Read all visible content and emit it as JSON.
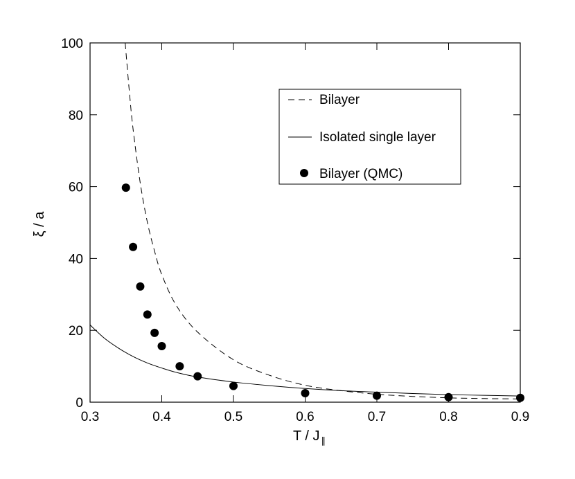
{
  "chart_data": {
    "type": "line",
    "xlabel": "T / J",
    "xlabel_subscript": "∥",
    "ylabel": "ξ / a",
    "xlim": [
      0.3,
      0.9
    ],
    "ylim": [
      0,
      100
    ],
    "x_ticks": [
      0.3,
      0.4,
      0.5,
      0.6,
      0.7,
      0.8,
      0.9
    ],
    "y_ticks": [
      0,
      20,
      40,
      60,
      80,
      100
    ],
    "x_tick_labels": [
      "0.3",
      "0.4",
      "0.5",
      "0.6",
      "0.7",
      "0.8",
      "0.9"
    ],
    "y_tick_labels": [
      "0",
      "20",
      "40",
      "60",
      "80",
      "100"
    ],
    "grid": false,
    "legend_position": "top-right",
    "series": [
      {
        "name": "Bilayer",
        "style": "dashed",
        "color": "#000000",
        "x": [
          0.349,
          0.355,
          0.36,
          0.37,
          0.38,
          0.39,
          0.4,
          0.42,
          0.45,
          0.5,
          0.55,
          0.6,
          0.65,
          0.7,
          0.75,
          0.8,
          0.85,
          0.9
        ],
        "y": [
          100,
          86,
          76,
          61,
          50,
          42,
          35.5,
          27,
          19.5,
          11.8,
          7.5,
          4.7,
          3.2,
          2.2,
          1.6,
          1.2,
          1.0,
          0.9
        ]
      },
      {
        "name": "Isolated single layer",
        "style": "solid",
        "color": "#000000",
        "x": [
          0.3,
          0.32,
          0.34,
          0.36,
          0.38,
          0.4,
          0.42,
          0.45,
          0.5,
          0.55,
          0.6,
          0.65,
          0.7,
          0.75,
          0.8,
          0.85,
          0.9
        ],
        "y": [
          21.5,
          17.8,
          15.0,
          12.7,
          10.9,
          9.5,
          8.3,
          7.0,
          5.6,
          4.6,
          3.8,
          3.2,
          2.8,
          2.4,
          2.1,
          1.9,
          1.7
        ]
      },
      {
        "name": "Bilayer (QMC)",
        "style": "markers",
        "color": "#000000",
        "x": [
          0.35,
          0.36,
          0.37,
          0.38,
          0.39,
          0.4,
          0.425,
          0.45,
          0.5,
          0.6,
          0.7,
          0.8,
          0.9
        ],
        "y": [
          59.7,
          43.2,
          32.2,
          24.4,
          19.3,
          15.6,
          10.0,
          7.2,
          4.5,
          2.5,
          1.8,
          1.4,
          1.2
        ]
      }
    ]
  }
}
